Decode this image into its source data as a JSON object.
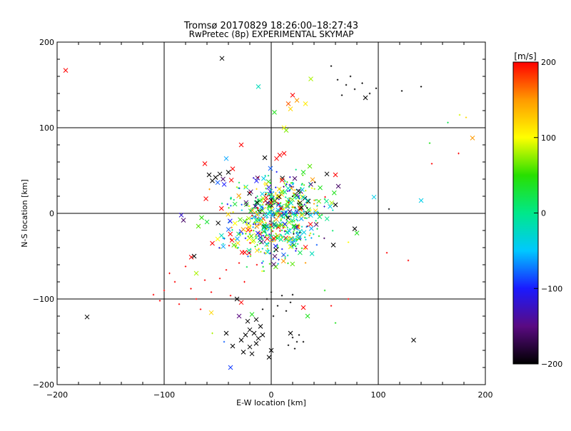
{
  "chart_data": {
    "type": "scatter",
    "title": "Tromsø 20170829 18:26:00–18:27:43",
    "subtitle": "RwPretec (8p) EXPERIMENTAL SKYMAP",
    "xlabel": "E-W location [km]",
    "ylabel": "N-S location [km]",
    "xlim": [
      -200,
      200
    ],
    "ylim": [
      -200,
      200
    ],
    "x_ticks": [
      -200,
      -100,
      0,
      100,
      200
    ],
    "y_ticks": [
      -200,
      -100,
      0,
      100,
      200
    ],
    "x_tick_labels": [
      "−200",
      "−100",
      "0",
      "100",
      "200"
    ],
    "y_tick_labels": [
      "−200",
      "−100",
      "0",
      "100",
      "200"
    ],
    "grid": true,
    "colorbar": {
      "label": "[m/s]",
      "range": [
        -200,
        200
      ],
      "ticks": [
        200,
        100,
        0,
        -100,
        -200
      ],
      "tick_labels": [
        "200",
        "100",
        "0",
        "−100",
        "−200"
      ],
      "colormap": [
        "#000000",
        "#5a0a82",
        "#1a1aff",
        "#00c8ff",
        "#00e88a",
        "#28e000",
        "#ffff00",
        "#ff9a00",
        "#ff0000"
      ]
    },
    "points": [
      {
        "x": -192,
        "y": 167,
        "v": 200,
        "m": "x"
      },
      {
        "x": -172,
        "y": -121,
        "v": -200,
        "m": "x"
      },
      {
        "x": -46,
        "y": 181,
        "v": -200,
        "m": "x"
      },
      {
        "x": -12,
        "y": 148,
        "v": -20,
        "m": "x"
      },
      {
        "x": 37,
        "y": 157,
        "v": 80,
        "m": "x"
      },
      {
        "x": 20,
        "y": 138,
        "v": 200,
        "m": "x"
      },
      {
        "x": 24,
        "y": 132,
        "v": 150,
        "m": "x"
      },
      {
        "x": 16,
        "y": 128,
        "v": 170,
        "m": "x"
      },
      {
        "x": 32,
        "y": 128,
        "v": 110,
        "m": "x"
      },
      {
        "x": 18,
        "y": 122,
        "v": 120,
        "m": "x"
      },
      {
        "x": 3,
        "y": 118,
        "v": 40,
        "m": "x"
      },
      {
        "x": 12,
        "y": 100,
        "v": 100,
        "m": "x"
      },
      {
        "x": 14,
        "y": 97,
        "v": 70,
        "m": "x"
      },
      {
        "x": 62,
        "y": 156,
        "v": -200,
        "m": "+"
      },
      {
        "x": 70,
        "y": 150,
        "v": -200,
        "m": "+"
      },
      {
        "x": 78,
        "y": 145,
        "v": -200,
        "m": "+"
      },
      {
        "x": 85,
        "y": 152,
        "v": -200,
        "m": "+"
      },
      {
        "x": 92,
        "y": 140,
        "v": -200,
        "m": "+"
      },
      {
        "x": 66,
        "y": 138,
        "v": -200,
        "m": "+"
      },
      {
        "x": 74,
        "y": 160,
        "v": -200,
        "m": "+"
      },
      {
        "x": 98,
        "y": 146,
        "v": -200,
        "m": "+"
      },
      {
        "x": 88,
        "y": 135,
        "v": -200,
        "m": "x"
      },
      {
        "x": 122,
        "y": 143,
        "v": -200,
        "m": "+"
      },
      {
        "x": 140,
        "y": 148,
        "v": -200,
        "m": "+"
      },
      {
        "x": 56,
        "y": 172,
        "v": -200,
        "m": "+"
      },
      {
        "x": 188,
        "y": 88,
        "v": 150,
        "m": "x"
      },
      {
        "x": 182,
        "y": 112,
        "v": 120,
        "m": "+"
      },
      {
        "x": 176,
        "y": 115,
        "v": 90,
        "m": "+"
      },
      {
        "x": 165,
        "y": 106,
        "v": 20,
        "m": "+"
      },
      {
        "x": 150,
        "y": 58,
        "v": 200,
        "m": "+"
      },
      {
        "x": 175,
        "y": 70,
        "v": 200,
        "m": "+"
      },
      {
        "x": 148,
        "y": 82,
        "v": 40,
        "m": "+"
      },
      {
        "x": -6,
        "y": 65,
        "v": -200,
        "m": "x"
      },
      {
        "x": 8,
        "y": 68,
        "v": 200,
        "m": "x"
      },
      {
        "x": 12,
        "y": 70,
        "v": 200,
        "m": "x"
      },
      {
        "x": 5,
        "y": 64,
        "v": 200,
        "m": "x"
      },
      {
        "x": -28,
        "y": 80,
        "v": 200,
        "m": "x"
      },
      {
        "x": -42,
        "y": 64,
        "v": -60,
        "m": "x"
      },
      {
        "x": -62,
        "y": 58,
        "v": 200,
        "m": "x"
      },
      {
        "x": -58,
        "y": 45,
        "v": -200,
        "m": "x"
      },
      {
        "x": -52,
        "y": 42,
        "v": -200,
        "m": "x"
      },
      {
        "x": -48,
        "y": 46,
        "v": -200,
        "m": "x"
      },
      {
        "x": -55,
        "y": 38,
        "v": -200,
        "m": "x"
      },
      {
        "x": -45,
        "y": 40,
        "v": -160,
        "m": "x"
      },
      {
        "x": -40,
        "y": 48,
        "v": -200,
        "m": "x"
      },
      {
        "x": -36,
        "y": 52,
        "v": 200,
        "m": "x"
      },
      {
        "x": -50,
        "y": 36,
        "v": -80,
        "m": "x"
      },
      {
        "x": 52,
        "y": 46,
        "v": -200,
        "m": "x"
      },
      {
        "x": 60,
        "y": 45,
        "v": 200,
        "m": "x"
      },
      {
        "x": 30,
        "y": 48,
        "v": 40,
        "m": "x"
      },
      {
        "x": 36,
        "y": 55,
        "v": 60,
        "m": "x"
      },
      {
        "x": 96,
        "y": 19,
        "v": -40,
        "m": "x"
      },
      {
        "x": 140,
        "y": 15,
        "v": -40,
        "m": "x"
      },
      {
        "x": 110,
        "y": 5,
        "v": -200,
        "m": "+"
      },
      {
        "x": 55,
        "y": 8,
        "v": -40,
        "m": "x"
      },
      {
        "x": 60,
        "y": 10,
        "v": -200,
        "m": "x"
      },
      {
        "x": 78,
        "y": -18,
        "v": -200,
        "m": "x"
      },
      {
        "x": 80,
        "y": -23,
        "v": 40,
        "m": "x"
      },
      {
        "x": 58,
        "y": -37,
        "v": -200,
        "m": "x"
      },
      {
        "x": -84,
        "y": -2,
        "v": -120,
        "m": "x"
      },
      {
        "x": -82,
        "y": -8,
        "v": -160,
        "m": "x"
      },
      {
        "x": -65,
        "y": -5,
        "v": 50,
        "m": "x"
      },
      {
        "x": -60,
        "y": -10,
        "v": 30,
        "m": "x"
      },
      {
        "x": -68,
        "y": -15,
        "v": 60,
        "m": "x"
      },
      {
        "x": -72,
        "y": -50,
        "v": -200,
        "m": "x"
      },
      {
        "x": -55,
        "y": -35,
        "v": 200,
        "m": "x"
      },
      {
        "x": -50,
        "y": -30,
        "v": 100,
        "m": "x"
      },
      {
        "x": -70,
        "y": -70,
        "v": 80,
        "m": "x"
      },
      {
        "x": -90,
        "y": -80,
        "v": 200,
        "m": "+"
      },
      {
        "x": -95,
        "y": -70,
        "v": 200,
        "m": "+"
      },
      {
        "x": -80,
        "y": -62,
        "v": 200,
        "m": "+"
      },
      {
        "x": -75,
        "y": -88,
        "v": 200,
        "m": "+"
      },
      {
        "x": -62,
        "y": -78,
        "v": 200,
        "m": "+"
      },
      {
        "x": -56,
        "y": -92,
        "v": 200,
        "m": "+"
      },
      {
        "x": -48,
        "y": -76,
        "v": 200,
        "m": "+"
      },
      {
        "x": -42,
        "y": -66,
        "v": 200,
        "m": "+"
      },
      {
        "x": -38,
        "y": -96,
        "v": 200,
        "m": "+"
      },
      {
        "x": -30,
        "y": -58,
        "v": 200,
        "m": "+"
      },
      {
        "x": -25,
        "y": -80,
        "v": 200,
        "m": "+"
      },
      {
        "x": -86,
        "y": -106,
        "v": 200,
        "m": "+"
      },
      {
        "x": -70,
        "y": -100,
        "v": 200,
        "m": "+"
      },
      {
        "x": -66,
        "y": -112,
        "v": 200,
        "m": "+"
      },
      {
        "x": -100,
        "y": -90,
        "v": 200,
        "m": "+"
      },
      {
        "x": -104,
        "y": -102,
        "v": 200,
        "m": "+"
      },
      {
        "x": -110,
        "y": -95,
        "v": 200,
        "m": "+"
      },
      {
        "x": -56,
        "y": -116,
        "v": 120,
        "m": "x"
      },
      {
        "x": -30,
        "y": -120,
        "v": -150,
        "m": "x"
      },
      {
        "x": -28,
        "y": -104,
        "v": 200,
        "m": "x"
      },
      {
        "x": -22,
        "y": -126,
        "v": -200,
        "m": "x"
      },
      {
        "x": -18,
        "y": -118,
        "v": 40,
        "m": "x"
      },
      {
        "x": -32,
        "y": -100,
        "v": -200,
        "m": "x"
      },
      {
        "x": -14,
        "y": -124,
        "v": -200,
        "m": "x"
      },
      {
        "x": -8,
        "y": -112,
        "v": -200,
        "m": "+"
      },
      {
        "x": -4,
        "y": -100,
        "v": -200,
        "m": "+"
      },
      {
        "x": 0,
        "y": -92,
        "v": -200,
        "m": "+"
      },
      {
        "x": 2,
        "y": -120,
        "v": -200,
        "m": "+"
      },
      {
        "x": 6,
        "y": -108,
        "v": -200,
        "m": "+"
      },
      {
        "x": 10,
        "y": -96,
        "v": -200,
        "m": "+"
      },
      {
        "x": 14,
        "y": -114,
        "v": -200,
        "m": "+"
      },
      {
        "x": 18,
        "y": -104,
        "v": -200,
        "m": "+"
      },
      {
        "x": 20,
        "y": -95,
        "v": -200,
        "m": "+"
      },
      {
        "x": -20,
        "y": -136,
        "v": -200,
        "m": "x"
      },
      {
        "x": -16,
        "y": -140,
        "v": -200,
        "m": "x"
      },
      {
        "x": -12,
        "y": -146,
        "v": -200,
        "m": "x"
      },
      {
        "x": -24,
        "y": -142,
        "v": -200,
        "m": "x"
      },
      {
        "x": -10,
        "y": -132,
        "v": -200,
        "m": "x"
      },
      {
        "x": -14,
        "y": -152,
        "v": -200,
        "m": "x"
      },
      {
        "x": -20,
        "y": -156,
        "v": -200,
        "m": "x"
      },
      {
        "x": -28,
        "y": -148,
        "v": -200,
        "m": "x"
      },
      {
        "x": -8,
        "y": -142,
        "v": -200,
        "m": "x"
      },
      {
        "x": -18,
        "y": -164,
        "v": -200,
        "m": "x"
      },
      {
        "x": -36,
        "y": -155,
        "v": -200,
        "m": "x"
      },
      {
        "x": -26,
        "y": -162,
        "v": -200,
        "m": "x"
      },
      {
        "x": -42,
        "y": -140,
        "v": -200,
        "m": "x"
      },
      {
        "x": 0,
        "y": -160,
        "v": -200,
        "m": "x"
      },
      {
        "x": -2,
        "y": -168,
        "v": -200,
        "m": "x"
      },
      {
        "x": 20,
        "y": -145,
        "v": -200,
        "m": "+"
      },
      {
        "x": 24,
        "y": -150,
        "v": -200,
        "m": "+"
      },
      {
        "x": 16,
        "y": -154,
        "v": -200,
        "m": "+"
      },
      {
        "x": 26,
        "y": -142,
        "v": -200,
        "m": "+"
      },
      {
        "x": 18,
        "y": -140,
        "v": -200,
        "m": "x"
      },
      {
        "x": 22,
        "y": -158,
        "v": -200,
        "m": "+"
      },
      {
        "x": 30,
        "y": -150,
        "v": -200,
        "m": "+"
      },
      {
        "x": 133,
        "y": -148,
        "v": -200,
        "m": "x"
      },
      {
        "x": -38,
        "y": -180,
        "v": -90,
        "m": "x"
      },
      {
        "x": -44,
        "y": -150,
        "v": -80,
        "m": "+"
      },
      {
        "x": -55,
        "y": -140,
        "v": 80,
        "m": "+"
      },
      {
        "x": 30,
        "y": -110,
        "v": 200,
        "m": "x"
      },
      {
        "x": 34,
        "y": -120,
        "v": 40,
        "m": "x"
      },
      {
        "x": 56,
        "y": -108,
        "v": 200,
        "m": "+"
      },
      {
        "x": 60,
        "y": -128,
        "v": 40,
        "m": "+"
      },
      {
        "x": 72,
        "y": -100,
        "v": 200,
        "m": "+"
      },
      {
        "x": 108,
        "y": -46,
        "v": 200,
        "m": "+"
      },
      {
        "x": 128,
        "y": -55,
        "v": 200,
        "m": "+"
      },
      {
        "x": 50,
        "y": -90,
        "v": 40,
        "m": "+"
      }
    ],
    "cluster": {
      "x_center": 5,
      "y_center": 10,
      "x_spread": 22,
      "y_spread": 18,
      "count": 420,
      "v_values": [
        200,
        150,
        120,
        100,
        80,
        60,
        40,
        30,
        20,
        10,
        0,
        -20,
        -40,
        -60,
        -80,
        -100,
        -120,
        -160,
        -200
      ]
    },
    "south_cluster": {
      "x_center": 0,
      "y_center": -28,
      "x_spread": 22,
      "y_spread": 15,
      "count": 260,
      "v_values": [
        200,
        200,
        150,
        120,
        100,
        80,
        60,
        40,
        20,
        0,
        -20,
        -40,
        -60,
        -80,
        -100,
        -160
      ]
    }
  }
}
